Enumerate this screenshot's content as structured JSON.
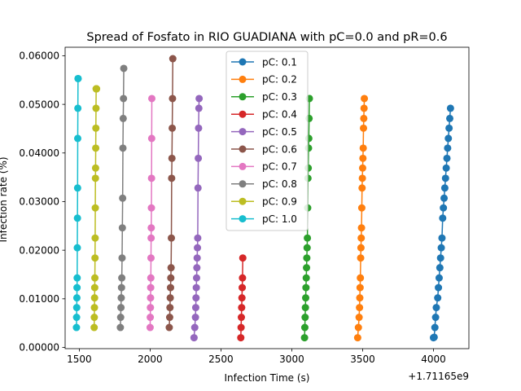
{
  "chart_data": {
    "type": "line",
    "title": "Spread of Fosfato in RIO GUADIANA with pC=0.0 and pR=0.6",
    "xlabel": "Infection Time (s)",
    "ylabel": "Infection rate (%)",
    "x_offset_label": "+1.71165e9",
    "xlim": [
      1400,
      4250
    ],
    "ylim": [
      -0.00025,
      0.06175
    ],
    "xticks": [
      1500,
      2000,
      2500,
      3000,
      3500,
      4000
    ],
    "xtick_labels": [
      "1500",
      "2000",
      "2500",
      "3000",
      "3500",
      "4000"
    ],
    "yticks": [
      0,
      0.01,
      0.02,
      0.03,
      0.04,
      0.05,
      0.06
    ],
    "ytick_labels": [
      "0.00000",
      "0.01000",
      "0.02000",
      "0.03000",
      "0.04000",
      "0.05000",
      "0.06000"
    ],
    "grid": false,
    "legend_position": "top-center",
    "series": [
      {
        "name": "pC: 0.1",
        "color": "#1f77b4",
        "x": [
          4000,
          4005,
          4010,
          4015,
          4020,
          4030,
          4035,
          4040,
          4045,
          4050,
          4055,
          4060,
          4065,
          4070,
          4075,
          4080,
          4085,
          4090,
          4095,
          4100,
          4105,
          4110,
          4115,
          4120
        ],
        "y": [
          0.002,
          0.0021,
          0.0041,
          0.0062,
          0.0082,
          0.0102,
          0.0123,
          0.0143,
          0.0164,
          0.0184,
          0.0205,
          0.0225,
          0.0266,
          0.0287,
          0.0307,
          0.0328,
          0.0348,
          0.0369,
          0.0389,
          0.041,
          0.043,
          0.0451,
          0.0471,
          0.0492
        ]
      },
      {
        "name": "pC: 0.2",
        "color": "#ff7f0e",
        "x": [
          3465,
          3470,
          3475,
          3478,
          3480,
          3482,
          3484,
          3486,
          3488,
          3490,
          3492,
          3494,
          3496,
          3498,
          3500,
          3502,
          3504,
          3506,
          3508,
          3510,
          3512
        ],
        "y": [
          0.002,
          0.0041,
          0.0062,
          0.0082,
          0.0102,
          0.0123,
          0.0143,
          0.0184,
          0.0205,
          0.0225,
          0.0246,
          0.0287,
          0.0328,
          0.0348,
          0.0369,
          0.0389,
          0.041,
          0.0451,
          0.0471,
          0.0492,
          0.0512
        ]
      },
      {
        "name": "pC: 0.3",
        "color": "#2ca02c",
        "x": [
          3090,
          3092,
          3094,
          3096,
          3098,
          3100,
          3102,
          3104,
          3106,
          3108,
          3110,
          3112,
          3114,
          3116,
          3118,
          3120,
          3122,
          3124
        ],
        "y": [
          0.002,
          0.0041,
          0.0062,
          0.0082,
          0.0102,
          0.0123,
          0.0143,
          0.0164,
          0.0184,
          0.0205,
          0.0225,
          0.0287,
          0.0348,
          0.0369,
          0.041,
          0.043,
          0.0471,
          0.0512
        ]
      },
      {
        "name": "pC: 0.4",
        "color": "#d62728",
        "x": [
          2640,
          2642,
          2644,
          2646,
          2648,
          2650,
          2652,
          2654
        ],
        "y": [
          0.002,
          0.0041,
          0.0062,
          0.0082,
          0.0102,
          0.0123,
          0.0143,
          0.0184
        ]
      },
      {
        "name": "pC: 0.5",
        "color": "#9467bd",
        "x": [
          2310,
          2315,
          2320,
          2322,
          2324,
          2326,
          2328,
          2330,
          2332,
          2334,
          2336,
          2338,
          2340,
          2342,
          2344,
          2346
        ],
        "y": [
          0.002,
          0.0041,
          0.0062,
          0.0082,
          0.0102,
          0.0123,
          0.0143,
          0.0164,
          0.0184,
          0.0205,
          0.0225,
          0.0328,
          0.0389,
          0.0451,
          0.0492,
          0.0512
        ]
      },
      {
        "name": "pC: 0.6",
        "color": "#8c564b",
        "x": [
          2135,
          2138,
          2140,
          2142,
          2144,
          2146,
          2148,
          2150,
          2152,
          2154,
          2156,
          2158,
          2160
        ],
        "y": [
          0.0041,
          0.0062,
          0.0082,
          0.0102,
          0.0123,
          0.0143,
          0.0164,
          0.0225,
          0.0348,
          0.0389,
          0.0451,
          0.0512,
          0.0594
        ]
      },
      {
        "name": "pC: 0.7",
        "color": "#e377c2",
        "x": [
          2000,
          2001,
          2002,
          2003,
          2004,
          2005,
          2006,
          2007,
          2008,
          2009,
          2010,
          2011,
          2012
        ],
        "y": [
          0.0041,
          0.0062,
          0.0082,
          0.0102,
          0.0123,
          0.0143,
          0.0184,
          0.0225,
          0.0246,
          0.0287,
          0.0348,
          0.043,
          0.0512
        ]
      },
      {
        "name": "pC: 0.8",
        "color": "#7f7f7f",
        "x": [
          1790,
          1792,
          1794,
          1796,
          1798,
          1800,
          1802,
          1804,
          1806,
          1808,
          1810,
          1812,
          1814
        ],
        "y": [
          0.0041,
          0.0062,
          0.0082,
          0.0102,
          0.0123,
          0.0143,
          0.0184,
          0.0246,
          0.0307,
          0.041,
          0.0471,
          0.0512,
          0.0574
        ]
      },
      {
        "name": "pC: 0.9",
        "color": "#bcbd22",
        "x": [
          1605,
          1606,
          1607,
          1608,
          1609,
          1610,
          1611,
          1612,
          1613,
          1614,
          1615,
          1616,
          1617,
          1618,
          1619,
          1620,
          1621,
          1622
        ],
        "y": [
          0.0041,
          0.0062,
          0.0082,
          0.0102,
          0.0123,
          0.0143,
          0.0184,
          0.0225,
          0.0287,
          0.0348,
          0.0369,
          0.041,
          0.0451,
          0.0492,
          0.0532,
          0.0532,
          0.0532,
          0.0532
        ]
      },
      {
        "name": "pC: 1.0",
        "color": "#17becf",
        "x": [
          1480,
          1481,
          1482,
          1483,
          1484,
          1485,
          1486,
          1487,
          1488,
          1489,
          1490,
          1491,
          1492
        ],
        "y": [
          0.0041,
          0.0062,
          0.0082,
          0.0102,
          0.0123,
          0.0143,
          0.0205,
          0.0266,
          0.0328,
          0.043,
          0.0492,
          0.0553,
          0.0553
        ]
      }
    ]
  }
}
